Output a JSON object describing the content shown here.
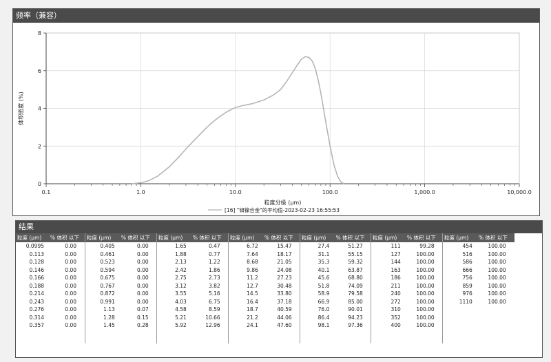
{
  "chart_panel": {
    "title": "频率（兼容）"
  },
  "chart_data": {
    "type": "line",
    "xscale": "log",
    "xlim": [
      0.1,
      10000
    ],
    "ylim": [
      0,
      8
    ],
    "x_ticks": [
      "0.1",
      "1.0",
      "10.0",
      "100.0",
      "1,000.0",
      "10,000.0"
    ],
    "y_ticks": [
      "0",
      "2",
      "4",
      "6",
      "8"
    ],
    "xlabel": "粒度分级 (μm)",
    "ylabel": "体积密度 (%)",
    "grid": true,
    "legend_position": "bottom",
    "series": [
      {
        "name": "[16] \"钼镍合金\"的平均值-2023-02-23 16:55:53",
        "color": "#b5b5b5",
        "x": [
          0.8,
          1.0,
          1.2,
          1.5,
          2.0,
          2.5,
          3.0,
          4.0,
          5.0,
          6.0,
          7.0,
          8.0,
          10.0,
          12.0,
          15.0,
          20.0,
          25.0,
          30.0,
          35.0,
          40.0,
          45.0,
          50.0,
          55.0,
          60.0,
          65.0,
          70.0,
          75.0,
          80.0,
          90.0,
          100.0,
          110.0,
          120.0,
          130.0,
          140.0
        ],
        "y": [
          0.0,
          0.05,
          0.15,
          0.4,
          0.9,
          1.4,
          1.85,
          2.5,
          3.0,
          3.35,
          3.6,
          3.8,
          4.05,
          4.15,
          4.25,
          4.45,
          4.7,
          5.0,
          5.45,
          5.9,
          6.3,
          6.62,
          6.75,
          6.7,
          6.5,
          6.1,
          5.5,
          4.8,
          3.3,
          2.0,
          1.0,
          0.4,
          0.1,
          0.0
        ]
      }
    ]
  },
  "results": {
    "title": "结果",
    "col_header_size": "粒度 (μm)",
    "col_header_vol": "% 体积 以下",
    "columns": [
      {
        "rows": [
          [
            "0.0995",
            "0.00"
          ],
          [
            "0.113",
            "0.00"
          ],
          [
            "0.128",
            "0.00"
          ],
          [
            "0.146",
            "0.00"
          ],
          [
            "0.166",
            "0.00"
          ],
          [
            "0.188",
            "0.00"
          ],
          [
            "0.214",
            "0.00"
          ],
          [
            "0.243",
            "0.00"
          ],
          [
            "0.276",
            "0.00"
          ],
          [
            "0.314",
            "0.00"
          ],
          [
            "0.357",
            "0.00"
          ]
        ]
      },
      {
        "rows": [
          [
            "0.405",
            "0.00"
          ],
          [
            "0.461",
            "0.00"
          ],
          [
            "0.523",
            "0.00"
          ],
          [
            "0.594",
            "0.00"
          ],
          [
            "0.675",
            "0.00"
          ],
          [
            "0.767",
            "0.00"
          ],
          [
            "0.872",
            "0.00"
          ],
          [
            "0.991",
            "0.00"
          ],
          [
            "1.13",
            "0.07"
          ],
          [
            "1.28",
            "0.15"
          ],
          [
            "1.45",
            "0.28"
          ]
        ]
      },
      {
        "rows": [
          [
            "1.65",
            "0.47"
          ],
          [
            "1.88",
            "0.77"
          ],
          [
            "2.13",
            "1.22"
          ],
          [
            "2.42",
            "1.86"
          ],
          [
            "2.75",
            "2.73"
          ],
          [
            "3.12",
            "3.82"
          ],
          [
            "3.55",
            "5.16"
          ],
          [
            "4.03",
            "6.75"
          ],
          [
            "4.58",
            "8.59"
          ],
          [
            "5.21",
            "10.66"
          ],
          [
            "5.92",
            "12.96"
          ]
        ]
      },
      {
        "rows": [
          [
            "6.72",
            "15.47"
          ],
          [
            "7.64",
            "18.17"
          ],
          [
            "8.68",
            "21.05"
          ],
          [
            "9.86",
            "24.08"
          ],
          [
            "11.2",
            "27.23"
          ],
          [
            "12.7",
            "30.48"
          ],
          [
            "14.5",
            "33.80"
          ],
          [
            "16.4",
            "37.18"
          ],
          [
            "18.7",
            "40.59"
          ],
          [
            "21.2",
            "44.06"
          ],
          [
            "24.1",
            "47.60"
          ]
        ]
      },
      {
        "rows": [
          [
            "27.4",
            "51.27"
          ],
          [
            "31.1",
            "55.15"
          ],
          [
            "35.3",
            "59.32"
          ],
          [
            "40.1",
            "63.87"
          ],
          [
            "45.6",
            "68.80"
          ],
          [
            "51.8",
            "74.09"
          ],
          [
            "58.9",
            "79.58"
          ],
          [
            "66.9",
            "85.00"
          ],
          [
            "76.0",
            "90.01"
          ],
          [
            "86.4",
            "94.23"
          ],
          [
            "98.1",
            "97.36"
          ]
        ]
      },
      {
        "rows": [
          [
            "111",
            "99.28"
          ],
          [
            "127",
            "100.00"
          ],
          [
            "144",
            "100.00"
          ],
          [
            "163",
            "100.00"
          ],
          [
            "186",
            "100.00"
          ],
          [
            "211",
            "100.00"
          ],
          [
            "240",
            "100.00"
          ],
          [
            "272",
            "100.00"
          ],
          [
            "310",
            "100.00"
          ],
          [
            "352",
            "100.00"
          ],
          [
            "400",
            "100.00"
          ]
        ]
      },
      {
        "rows": [
          [
            "454",
            "100.00"
          ],
          [
            "516",
            "100.00"
          ],
          [
            "586",
            "100.00"
          ],
          [
            "666",
            "100.00"
          ],
          [
            "756",
            "100.00"
          ],
          [
            "859",
            "100.00"
          ],
          [
            "976",
            "100.00"
          ],
          [
            "1110",
            "100.00"
          ]
        ]
      }
    ]
  }
}
